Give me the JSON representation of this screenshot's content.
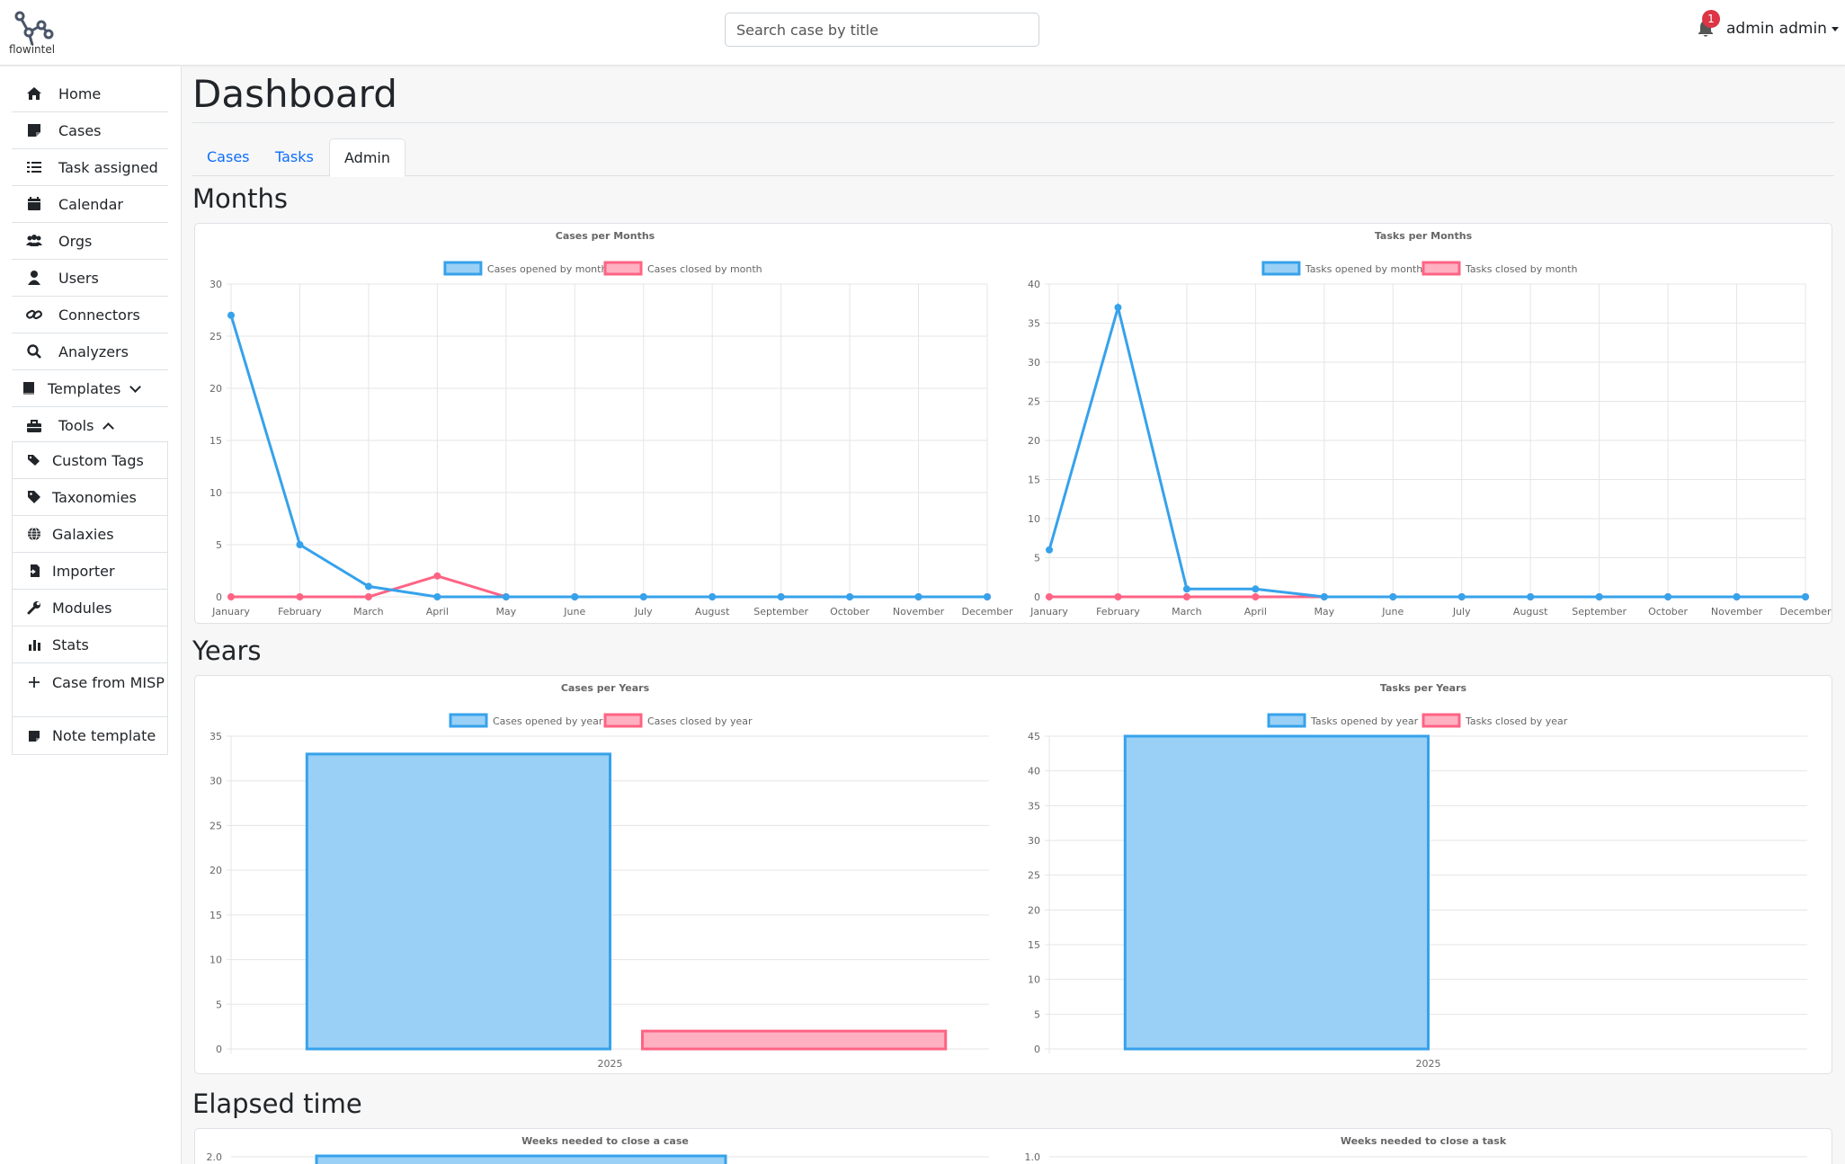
{
  "app": {
    "logo_text": "flowintel"
  },
  "header": {
    "search_placeholder": "Search case by title",
    "notification_count": "1",
    "user_name": "admin admin"
  },
  "sidebar": {
    "items": [
      {
        "label": "Home",
        "icon": "home-icon"
      },
      {
        "label": "Cases",
        "icon": "note-icon"
      },
      {
        "label": "Task assigned",
        "icon": "list-check-icon"
      },
      {
        "label": "Calendar",
        "icon": "calendar-icon"
      },
      {
        "label": "Orgs",
        "icon": "users-group-icon"
      },
      {
        "label": "Users",
        "icon": "user-icon"
      },
      {
        "label": "Connectors",
        "icon": "link-icon"
      },
      {
        "label": "Analyzers",
        "icon": "search-icon"
      },
      {
        "label": "Templates",
        "icon": "book-icon"
      },
      {
        "label": "Tools",
        "icon": "toolbox-icon"
      }
    ],
    "tools": [
      {
        "label": "Custom Tags",
        "icon": "tags-icon"
      },
      {
        "label": "Taxonomies",
        "icon": "tag-icon"
      },
      {
        "label": "Galaxies",
        "icon": "globe-icon"
      },
      {
        "label": "Importer",
        "icon": "file-import-icon"
      },
      {
        "label": "Modules",
        "icon": "wrench-icon"
      },
      {
        "label": "Stats",
        "icon": "bar-chart-icon"
      },
      {
        "label": "Case from MISP",
        "icon": "plus-icon"
      },
      {
        "label": "Note template",
        "icon": "note-icon"
      }
    ]
  },
  "main": {
    "title": "Dashboard",
    "tabs": [
      "Cases",
      "Tasks",
      "Admin"
    ],
    "active_tab": "Admin",
    "sections": {
      "months": "Months",
      "years": "Years",
      "elapsed": "Elapsed time"
    }
  },
  "colors": {
    "blue": "#36a2eb",
    "blue_fill": "#9ad0f5",
    "pink": "#ff6384",
    "pink_fill": "#ffb1c1",
    "link": "#0d6efd"
  },
  "chart_data": [
    {
      "type": "line",
      "title": "Cases per Months",
      "categories": [
        "January",
        "February",
        "March",
        "April",
        "May",
        "June",
        "July",
        "August",
        "September",
        "October",
        "November",
        "December"
      ],
      "series": [
        {
          "name": "Cases opened by month",
          "values": [
            27,
            5,
            1,
            0,
            0,
            0,
            0,
            0,
            0,
            0,
            0,
            0
          ]
        },
        {
          "name": "Cases closed by month",
          "values": [
            0,
            0,
            0,
            2,
            0,
            0,
            0,
            0,
            0,
            0,
            0,
            0
          ]
        }
      ],
      "ylim": [
        0,
        30
      ],
      "yticks": [
        0,
        5,
        10,
        15,
        20,
        25,
        30
      ],
      "legend": "top",
      "grid": true
    },
    {
      "type": "line",
      "title": "Tasks per Months",
      "categories": [
        "January",
        "February",
        "March",
        "April",
        "May",
        "June",
        "July",
        "August",
        "September",
        "October",
        "November",
        "December"
      ],
      "series": [
        {
          "name": "Tasks opened by month",
          "values": [
            6,
            37,
            1,
            1,
            0,
            0,
            0,
            0,
            0,
            0,
            0,
            0
          ]
        },
        {
          "name": "Tasks closed by month",
          "values": [
            0,
            0,
            0,
            0,
            0,
            0,
            0,
            0,
            0,
            0,
            0,
            0
          ]
        }
      ],
      "ylim": [
        0,
        40
      ],
      "yticks": [
        0,
        5,
        10,
        15,
        20,
        25,
        30,
        35,
        40
      ],
      "legend": "top",
      "grid": true
    },
    {
      "type": "bar",
      "title": "Cases per Years",
      "categories": [
        "2025"
      ],
      "series": [
        {
          "name": "Cases opened by year",
          "values": [
            33
          ]
        },
        {
          "name": "Cases closed by year",
          "values": [
            2
          ]
        }
      ],
      "ylim": [
        0,
        35
      ],
      "yticks": [
        0,
        5,
        10,
        15,
        20,
        25,
        30,
        35
      ],
      "legend": "top",
      "grid": true
    },
    {
      "type": "bar",
      "title": "Tasks per Years",
      "categories": [
        "2025"
      ],
      "series": [
        {
          "name": "Tasks opened by year",
          "values": [
            45
          ]
        },
        {
          "name": "Tasks closed by year",
          "values": [
            0
          ]
        }
      ],
      "ylim": [
        0,
        45
      ],
      "yticks": [
        0,
        5,
        10,
        15,
        20,
        25,
        30,
        35,
        40,
        45
      ],
      "legend": "top",
      "grid": true
    },
    {
      "type": "bar",
      "title": "Weeks needed to close a case",
      "yticks_visible": [
        "2.0"
      ]
    },
    {
      "type": "bar",
      "title": "Weeks needed to close a task",
      "yticks_visible": [
        "1.0"
      ]
    }
  ]
}
